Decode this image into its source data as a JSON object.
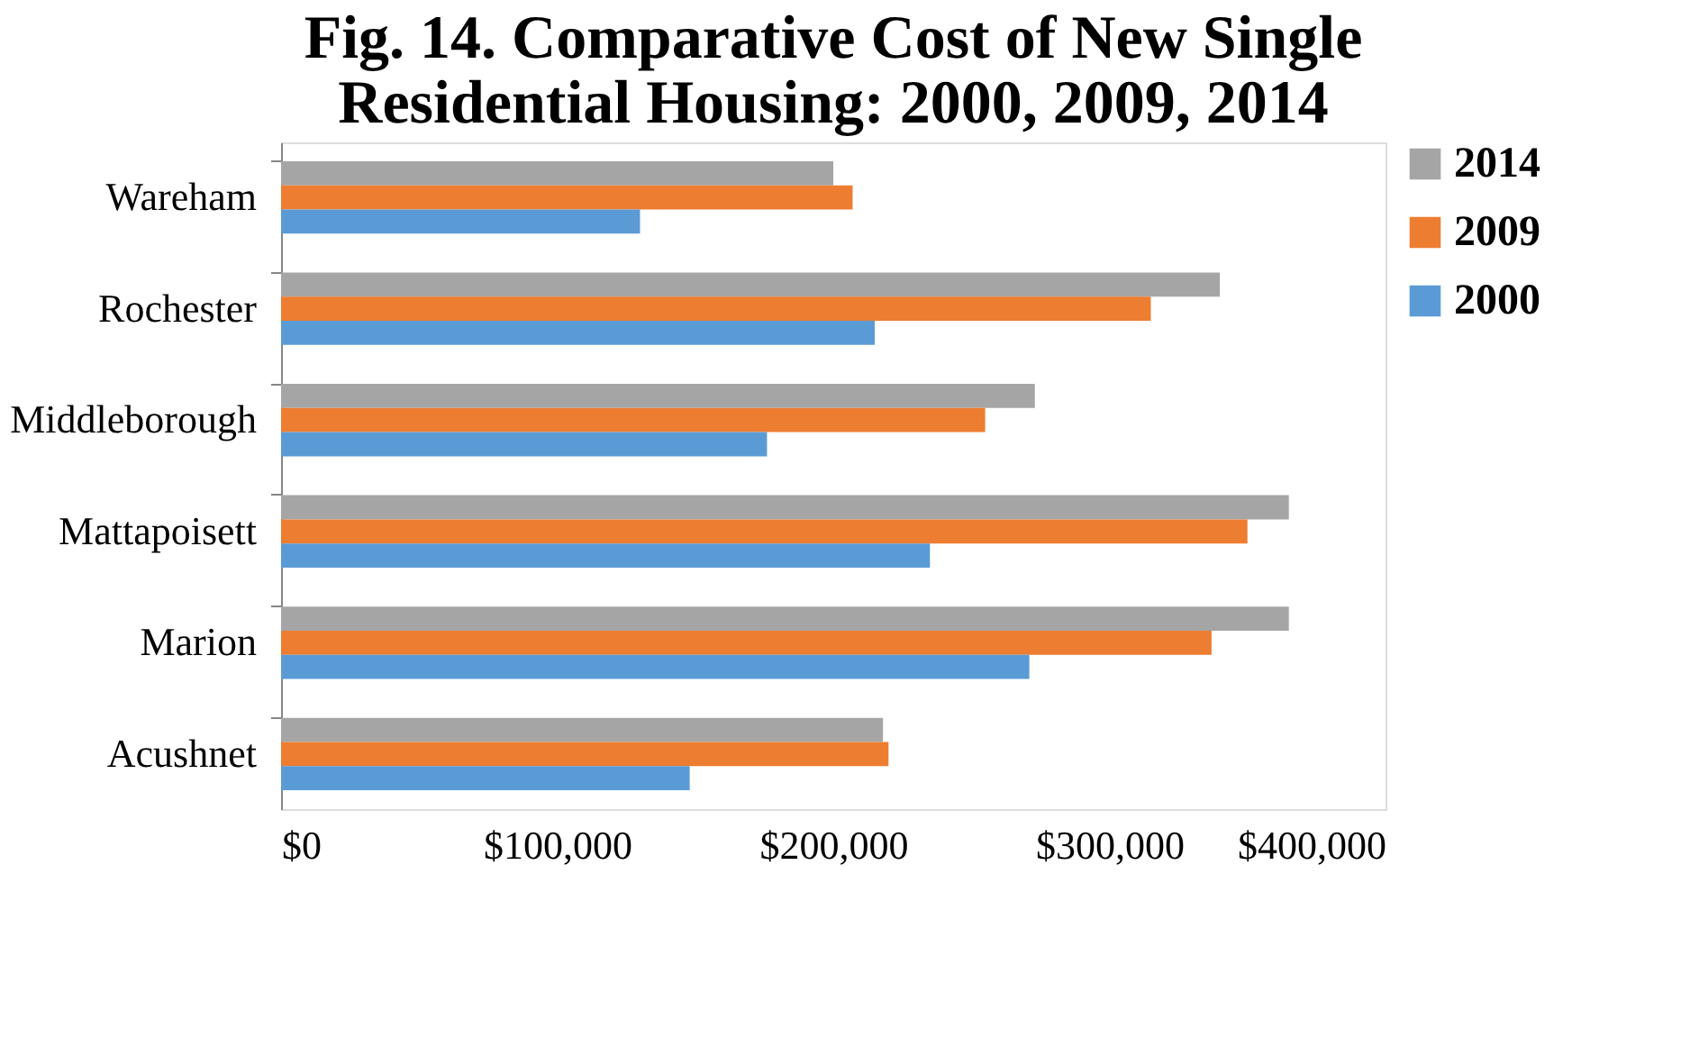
{
  "chart_data": {
    "type": "bar",
    "orientation": "horizontal",
    "title": [
      "Fig. 14. Comparative Cost of New Single",
      "Residential Housing:  2000, 2009, 2014"
    ],
    "categories": [
      "Wareham",
      "Rochester",
      "Middleborough",
      "Mattapoisett",
      "Marion",
      "Acushnet"
    ],
    "series": [
      {
        "name": "2014",
        "color": "#a5a5a5",
        "values": [
          200000,
          340000,
          273000,
          365000,
          365000,
          218000
        ]
      },
      {
        "name": "2009",
        "color": "#ed7d31",
        "values": [
          207000,
          315000,
          255000,
          350000,
          337000,
          220000
        ]
      },
      {
        "name": "2000",
        "color": "#5b9bd5",
        "values": [
          130000,
          215000,
          176000,
          235000,
          271000,
          148000
        ]
      }
    ],
    "xlim": [
      0,
      400000
    ],
    "xticks": [
      {
        "value": 0,
        "label": "$0"
      },
      {
        "value": 100000,
        "label": "$100,000"
      },
      {
        "value": 200000,
        "label": "$200,000"
      },
      {
        "value": 300000,
        "label": "$300,000"
      },
      {
        "value": 400000,
        "label": "$400,000"
      }
    ],
    "grid": false,
    "legend": "top right"
  }
}
